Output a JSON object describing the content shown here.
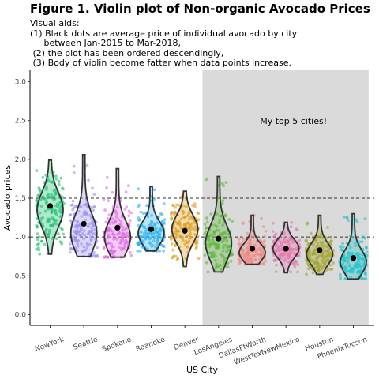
{
  "chart_data": {
    "type": "violin",
    "title": "Figure 1. Violin plot of Non-organic Avocado Prices",
    "subtitle_lines": [
      "Visual aids:",
      "(1) Black dots are average price of individual avocado by city",
      "     between Jan-2015 to Mar-2018,",
      " (2) the plot has been ordered descendingly,",
      " (3) Body of violin become fatter when data points increase."
    ],
    "xlabel": "US City",
    "ylabel": "Avocado prices",
    "ylim": [
      0,
      3.0
    ],
    "yticks": [
      "0.0",
      "0.5",
      "1.0",
      "1.5",
      "2.0",
      "2.5",
      "3.0"
    ],
    "reference_lines": [
      1.0,
      1.5
    ],
    "highlight": {
      "from_category": "LosAngeles",
      "to_category": "PhoenixTucson",
      "label": "My top 5 cities!"
    },
    "series": [
      {
        "name": "NewYork",
        "color": "#1fbf73",
        "mean": 1.4,
        "min": 0.78,
        "max": 1.99,
        "mode": 1.35
      },
      {
        "name": "Seattle",
        "color": "#9b8ff0",
        "mean": 1.17,
        "min": 0.75,
        "max": 2.06,
        "mode": 1.05
      },
      {
        "name": "Spokane",
        "color": "#e06ee6",
        "mean": 1.12,
        "min": 0.74,
        "max": 1.88,
        "mode": 1.0
      },
      {
        "name": "Roanoke",
        "color": "#2fb4ee",
        "mean": 1.1,
        "min": 0.82,
        "max": 1.65,
        "mode": 1.05
      },
      {
        "name": "Denver",
        "color": "#dd9e1f",
        "mean": 1.08,
        "min": 0.62,
        "max": 1.59,
        "mode": 1.1
      },
      {
        "name": "LosAngeles",
        "color": "#5fb83a",
        "mean": 0.98,
        "min": 0.55,
        "max": 1.78,
        "mode": 0.92
      },
      {
        "name": "DallasFtWorth",
        "color": "#ef8a84",
        "mean": 0.85,
        "min": 0.65,
        "max": 1.28,
        "mode": 0.8
      },
      {
        "name": "WestTexNewMexico",
        "color": "#e57ab0",
        "mean": 0.85,
        "min": 0.54,
        "max": 1.19,
        "mode": 0.85
      },
      {
        "name": "Houston",
        "color": "#a3a32e",
        "mean": 0.83,
        "min": 0.52,
        "max": 1.28,
        "mode": 0.78
      },
      {
        "name": "PhoenixTucson",
        "color": "#22c4cc",
        "mean": 0.73,
        "min": 0.46,
        "max": 1.3,
        "mode": 0.68
      }
    ]
  }
}
